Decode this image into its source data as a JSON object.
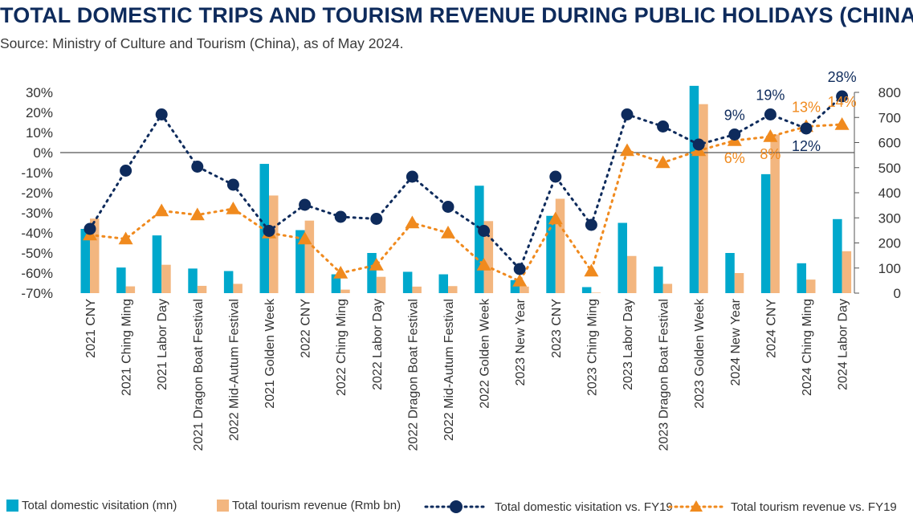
{
  "title": "TOTAL DOMESTIC TRIPS AND TOURISM REVENUE DURING PUBLIC HOLIDAYS (CHINA)",
  "subtitle": "Source: Ministry of Culture and Tourism (China), as of May 2024.",
  "colors": {
    "visitation_bar": "#00a8cc",
    "revenue_bar": "#f3b67f",
    "visitation_line": "#0e2b5c",
    "revenue_line": "#f08a1e",
    "axis_text": "#333333"
  },
  "legend": {
    "visitation_bar": "Total domestic visitation (mn)",
    "revenue_bar": "Total tourism revenue (Rmb bn)",
    "visitation_line": "Total domestic visitation vs. FY19",
    "revenue_line": "Total tourism revenue vs. FY19"
  },
  "chart_data": {
    "type": "bar",
    "title": "TOTAL DOMESTIC TRIPS AND TOURISM REVENUE DURING PUBLIC HOLIDAYS (CHINA)",
    "categories": [
      "2021 CNY",
      "2021 Ching Ming",
      "2021 Labor Day",
      "2021 Dragon Boat Festival",
      "2022 Mid-Autum Festival",
      "2021 Golden Week",
      "2022 CNY",
      "2022 Ching Ming",
      "2022 Labor Day",
      "2022 Dragon Boat Festival",
      "2022 Mid-Autum Festival",
      "2022 Golden Week",
      "2023 New Year",
      "2023 CNY",
      "2023 Ching Ming",
      "2023 Labor Day",
      "2023 Dragon Boat Festival",
      "2023 Golden Week",
      "2024 New Year",
      "2024 CNY",
      "2024 Ching Ming",
      "2024 Labor Day"
    ],
    "y_left": {
      "ticks": [
        "30%",
        "20%",
        "10%",
        "0%",
        "-10%",
        "-20%",
        "-30%",
        "-40%",
        "-50%",
        "-60%",
        "-70%"
      ],
      "min": -70,
      "max": 30
    },
    "y_right": {
      "ticks": [
        "800",
        "700",
        "600",
        "500",
        "400",
        "300",
        "200",
        "100",
        "0"
      ],
      "min": 0,
      "max": 800
    },
    "series": [
      {
        "name": "Total domestic visitation (mn)",
        "type": "bar",
        "axis": "right",
        "values": [
          256,
          102,
          230,
          98,
          88,
          515,
          251,
          75,
          160,
          85,
          75,
          428,
          52,
          308,
          24,
          280,
          106,
          826,
          160,
          474,
          119,
          295
        ]
      },
      {
        "name": "Total tourism revenue (Rmb bn)",
        "type": "bar",
        "axis": "right",
        "values": [
          297,
          27,
          113,
          29,
          37,
          389,
          289,
          14,
          65,
          26,
          28,
          287,
          26,
          376,
          2,
          148,
          37,
          753,
          80,
          632,
          54,
          167
        ]
      },
      {
        "name": "Total domestic visitation vs. FY19",
        "type": "line",
        "axis": "left",
        "values": [
          -38,
          -9,
          19,
          -7,
          -16,
          -39,
          -26,
          -32,
          -33,
          -12,
          -27,
          -39,
          -58,
          -12,
          -36,
          19,
          13,
          4,
          9,
          19,
          12,
          28
        ]
      },
      {
        "name": "Total tourism revenue vs. FY19",
        "type": "line",
        "axis": "left",
        "values": [
          -41,
          -43,
          -29,
          -31,
          -28,
          -40,
          -43,
          -60,
          -56,
          -35,
          -40,
          -56,
          -64,
          -33,
          -59,
          1,
          -5,
          1,
          6,
          8,
          13,
          14
        ]
      }
    ],
    "annotations": {
      "visitation_line": [
        {
          "index": 18,
          "text": "9%"
        },
        {
          "index": 19,
          "text": "19%"
        },
        {
          "index": 20,
          "text": "12%"
        },
        {
          "index": 21,
          "text": "28%"
        }
      ],
      "revenue_line": [
        {
          "index": 18,
          "text": "6%"
        },
        {
          "index": 19,
          "text": "8%"
        },
        {
          "index": 20,
          "text": "13%"
        },
        {
          "index": 21,
          "text": "14%"
        }
      ]
    }
  }
}
